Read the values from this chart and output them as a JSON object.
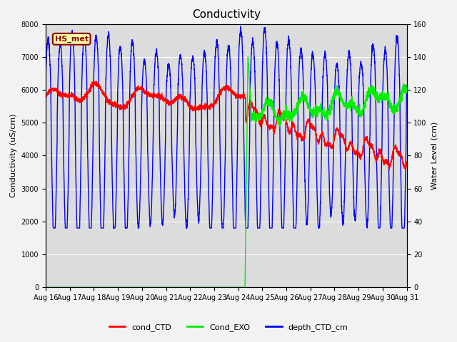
{
  "title": "Conductivity",
  "ylabel_left": "Conductivity (uS/cm)",
  "ylabel_right": "Water Level (cm)",
  "ylim_left": [
    0,
    8000
  ],
  "ylim_right": [
    0,
    160
  ],
  "xlim": [
    0,
    15
  ],
  "xtick_labels": [
    "Aug 16",
    "Aug 17",
    "Aug 18",
    "Aug 19",
    "Aug 20",
    "Aug 21",
    "Aug 22",
    "Aug 23",
    "Aug 24",
    "Aug 25",
    "Aug 26",
    "Aug 27",
    "Aug 28",
    "Aug 29",
    "Aug 30",
    "Aug 31"
  ],
  "bg_color": "#dcdcdc",
  "fig_color": "#f2f2f2",
  "annotation_text": "HS_met",
  "annotation_bg": "#ffffaa",
  "annotation_border": "#8b0000",
  "legend_labels": [
    "cond_CTD",
    "Cond_EXO",
    "depth_CTD_cm"
  ],
  "line_width": 1.0,
  "title_fontsize": 11,
  "label_fontsize": 8,
  "tick_fontsize": 7,
  "legend_fontsize": 8
}
